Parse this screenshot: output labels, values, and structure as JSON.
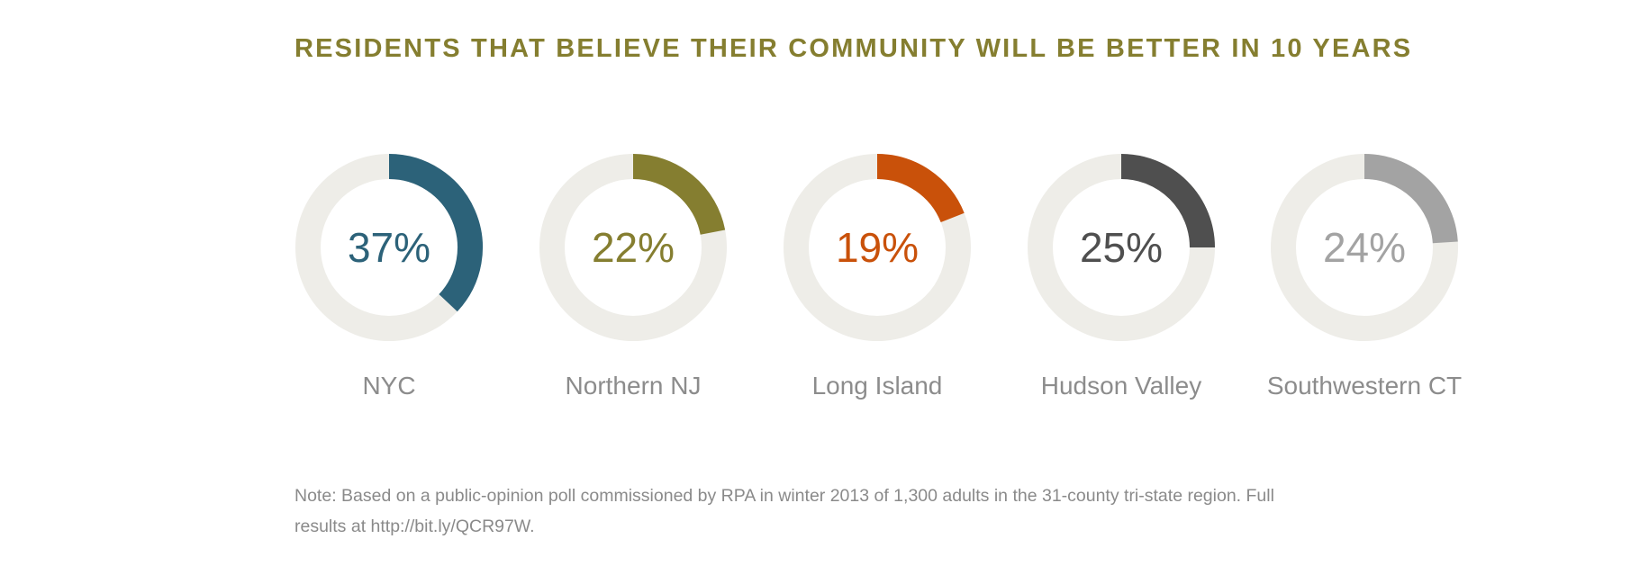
{
  "page": {
    "title": "RESIDENTS THAT BELIEVE THEIR COMMUNITY WILL BE BETTER IN 10 YEARS",
    "note": "Note: Based on a public-opinion poll commissioned by RPA in winter 2013 of 1,300 adults in the 31-county tri-state region. Full results at http://bit.ly/QCR97W."
  },
  "colors": {
    "title": "#857e30",
    "track": "#eeede8",
    "label": "#8c8c8c"
  },
  "chart_data": {
    "type": "donut",
    "title": "RESIDENTS THAT BELIEVE THEIR COMMUNITY WILL BE BETTER IN 10 YEARS",
    "unit": "%",
    "max": 100,
    "items": [
      {
        "label": "NYC",
        "value": 37,
        "value_label": "37%",
        "color": "#2c6279"
      },
      {
        "label": "Northern NJ",
        "value": 22,
        "value_label": "22%",
        "color": "#857e30"
      },
      {
        "label": "Long Island",
        "value": 19,
        "value_label": "19%",
        "color": "#c9510a"
      },
      {
        "label": "Hudson Valley",
        "value": 25,
        "value_label": "25%",
        "color": "#4f4f4f"
      },
      {
        "label": "Southwestern CT",
        "value": 24,
        "value_label": "24%",
        "color": "#a3a3a3"
      }
    ]
  }
}
